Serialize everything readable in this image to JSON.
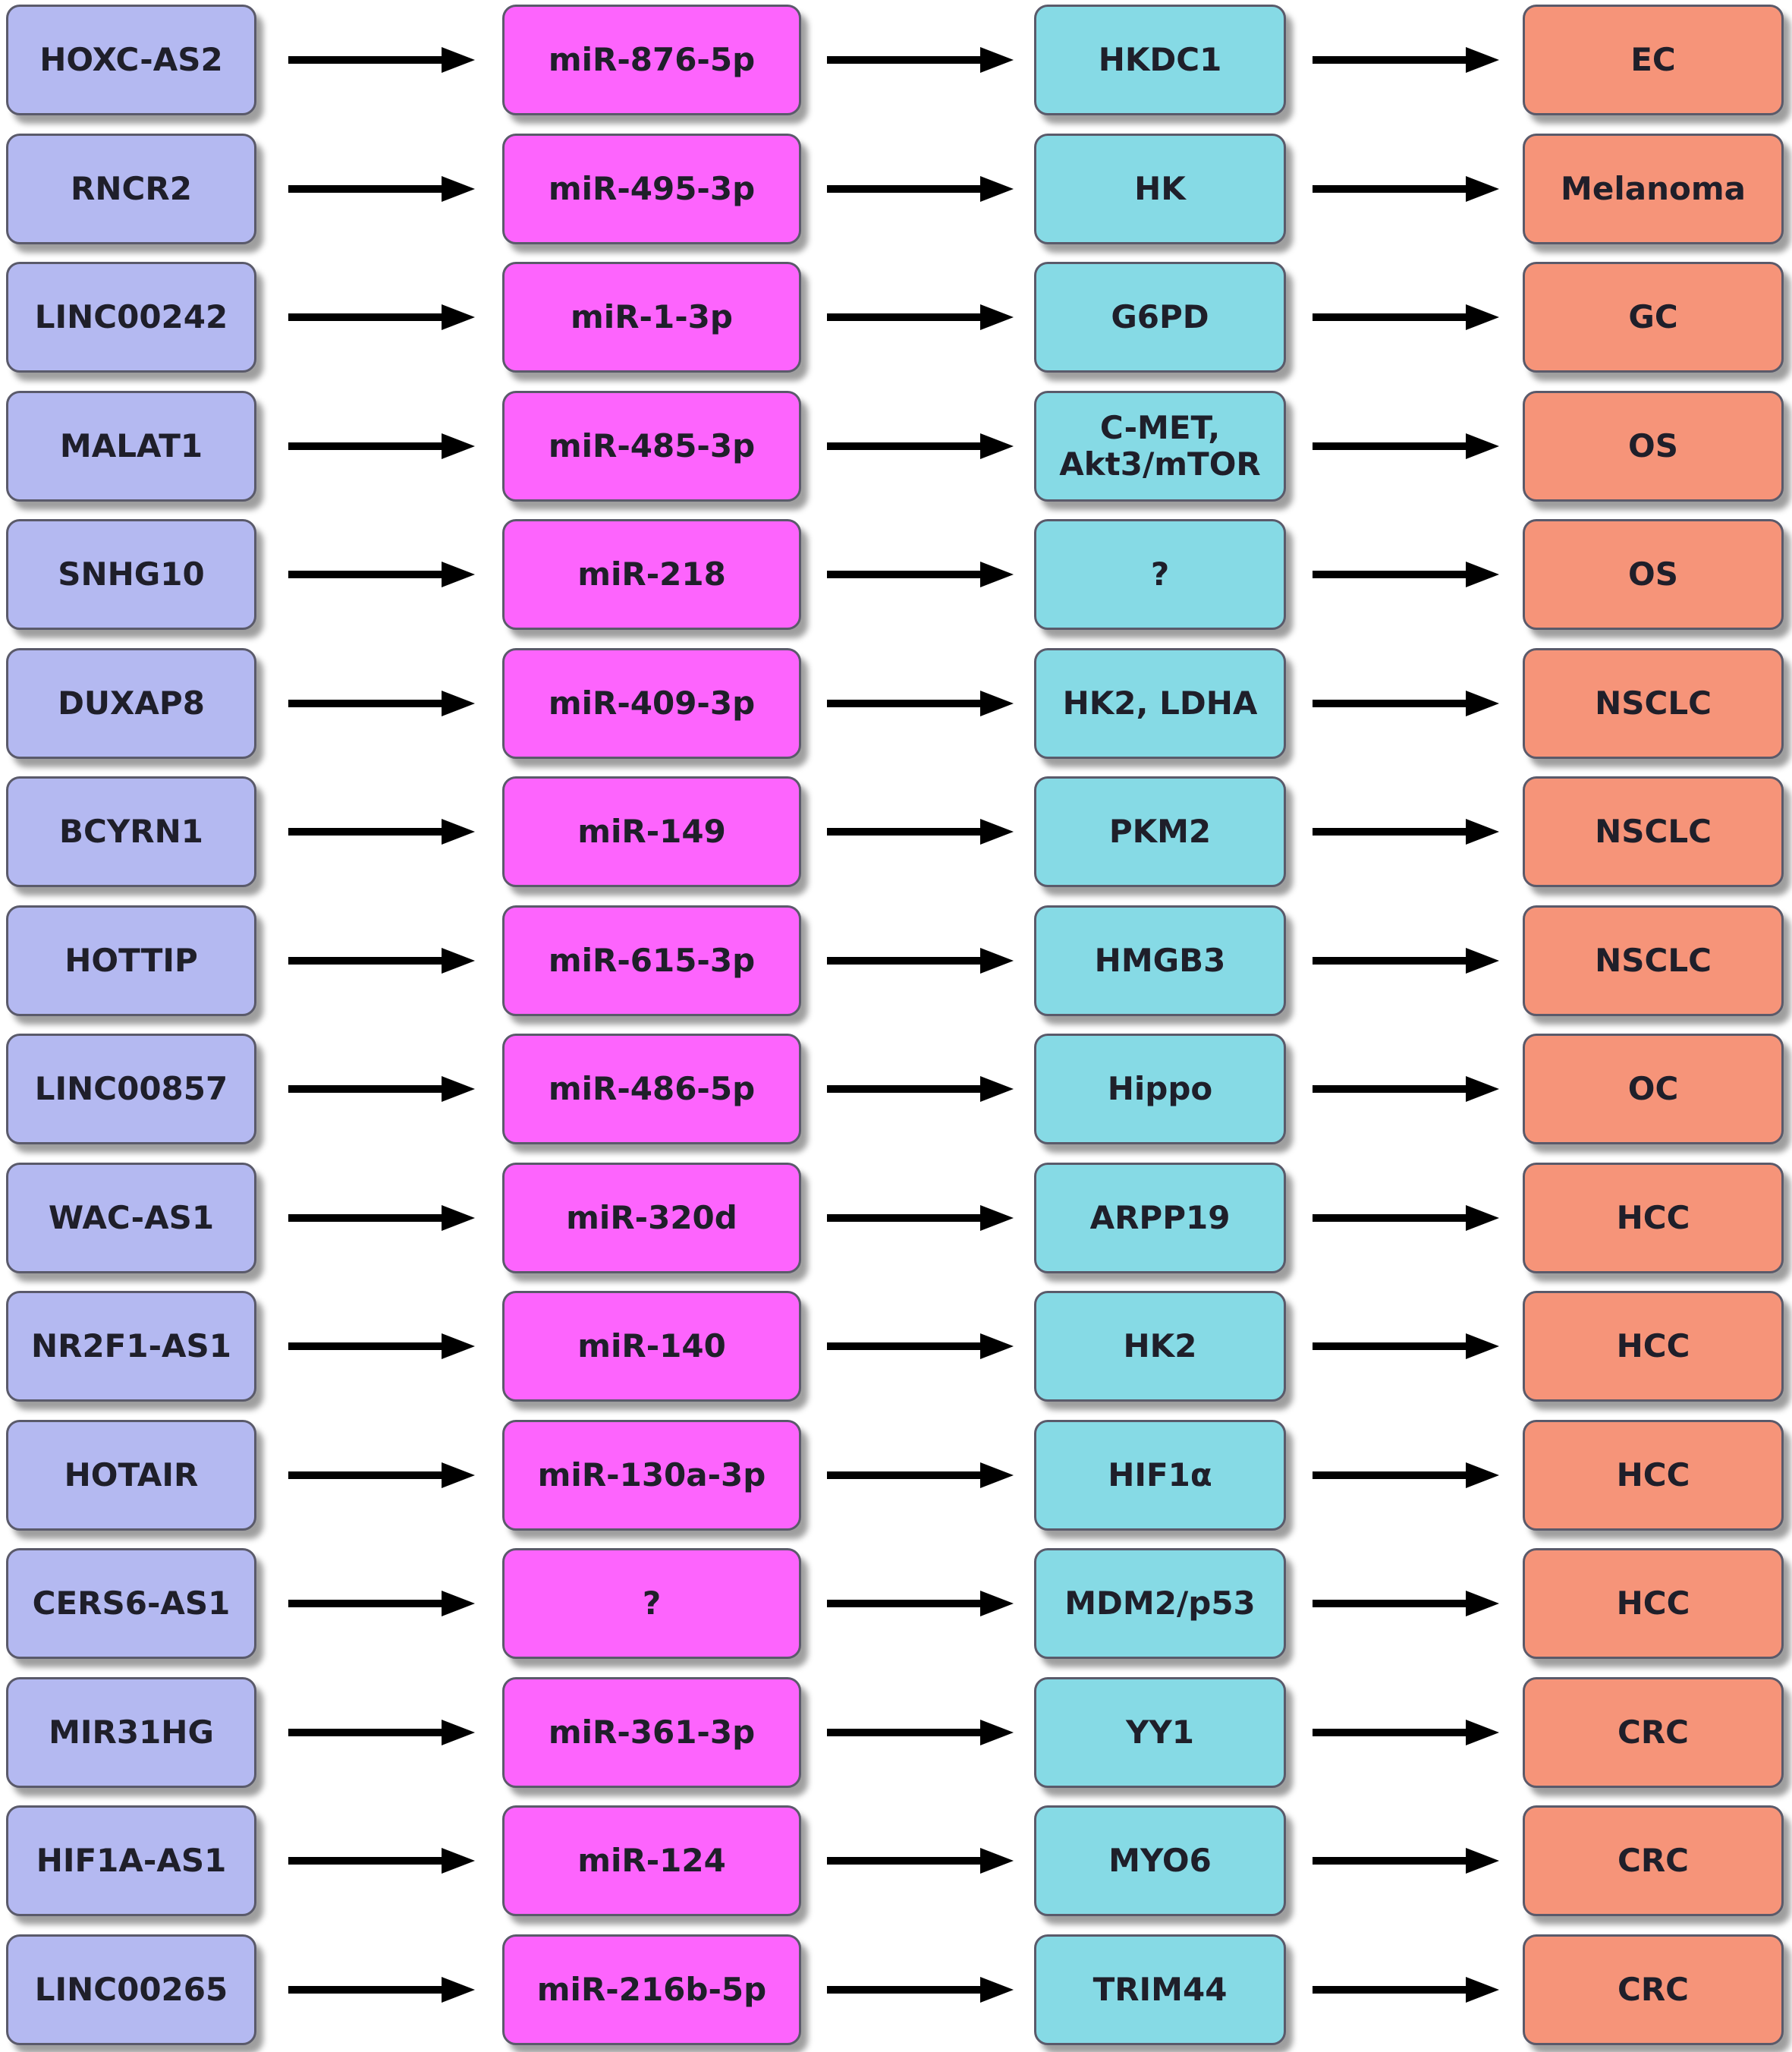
{
  "rows": [
    {
      "lncrna": "HOXC-AS2",
      "mirna": "miR-876-5p",
      "target": "HKDC1",
      "cancer": "EC"
    },
    {
      "lncrna": "RNCR2",
      "mirna": "miR-495-3p",
      "target": "HK",
      "cancer": "Melanoma"
    },
    {
      "lncrna": "LINC00242",
      "mirna": "miR-1-3p",
      "target": "G6PD",
      "cancer": "GC"
    },
    {
      "lncrna": "MALAT1",
      "mirna": "miR-485-3p",
      "target": "C-MET,\nAkt3/mTOR",
      "cancer": "OS"
    },
    {
      "lncrna": "SNHG10",
      "mirna": "miR-218",
      "target": "?",
      "cancer": "OS"
    },
    {
      "lncrna": "DUXAP8",
      "mirna": "miR-409-3p",
      "target": "HK2, LDHA",
      "cancer": "NSCLC"
    },
    {
      "lncrna": "BCYRN1",
      "mirna": "miR-149",
      "target": "PKM2",
      "cancer": "NSCLC"
    },
    {
      "lncrna": "HOTTIP",
      "mirna": "miR-615-3p",
      "target": "HMGB3",
      "cancer": "NSCLC"
    },
    {
      "lncrna": "LINC00857",
      "mirna": "miR-486-5p",
      "target": "Hippo",
      "cancer": "OC"
    },
    {
      "lncrna": "WAC-AS1",
      "mirna": "miR-320d",
      "target": "ARPP19",
      "cancer": "HCC"
    },
    {
      "lncrna": "NR2F1-AS1",
      "mirna": "miR-140",
      "target": "HK2",
      "cancer": "HCC"
    },
    {
      "lncrna": "HOTAIR",
      "mirna": "miR-130a-3p",
      "target": "HIF1α",
      "cancer": "HCC"
    },
    {
      "lncrna": "CERS6-AS1",
      "mirna": "?",
      "target": "MDM2/p53",
      "cancer": "HCC"
    },
    {
      "lncrna": "MIR31HG",
      "mirna": "miR-361-3p",
      "target": "YY1",
      "cancer": "CRC"
    },
    {
      "lncrna": "HIF1A-AS1",
      "mirna": "miR-124",
      "target": "MYO6",
      "cancer": "CRC"
    },
    {
      "lncrna": "LINC00265",
      "mirna": "miR-216b-5p",
      "target": "TRIM44",
      "cancer": "CRC"
    }
  ],
  "colors": {
    "lncrna_box": "#b4b9f1",
    "mirna_box": "#fd64fd",
    "target_box": "#86dae5",
    "cancer_box": "#f69479",
    "arrow": "#000000"
  }
}
